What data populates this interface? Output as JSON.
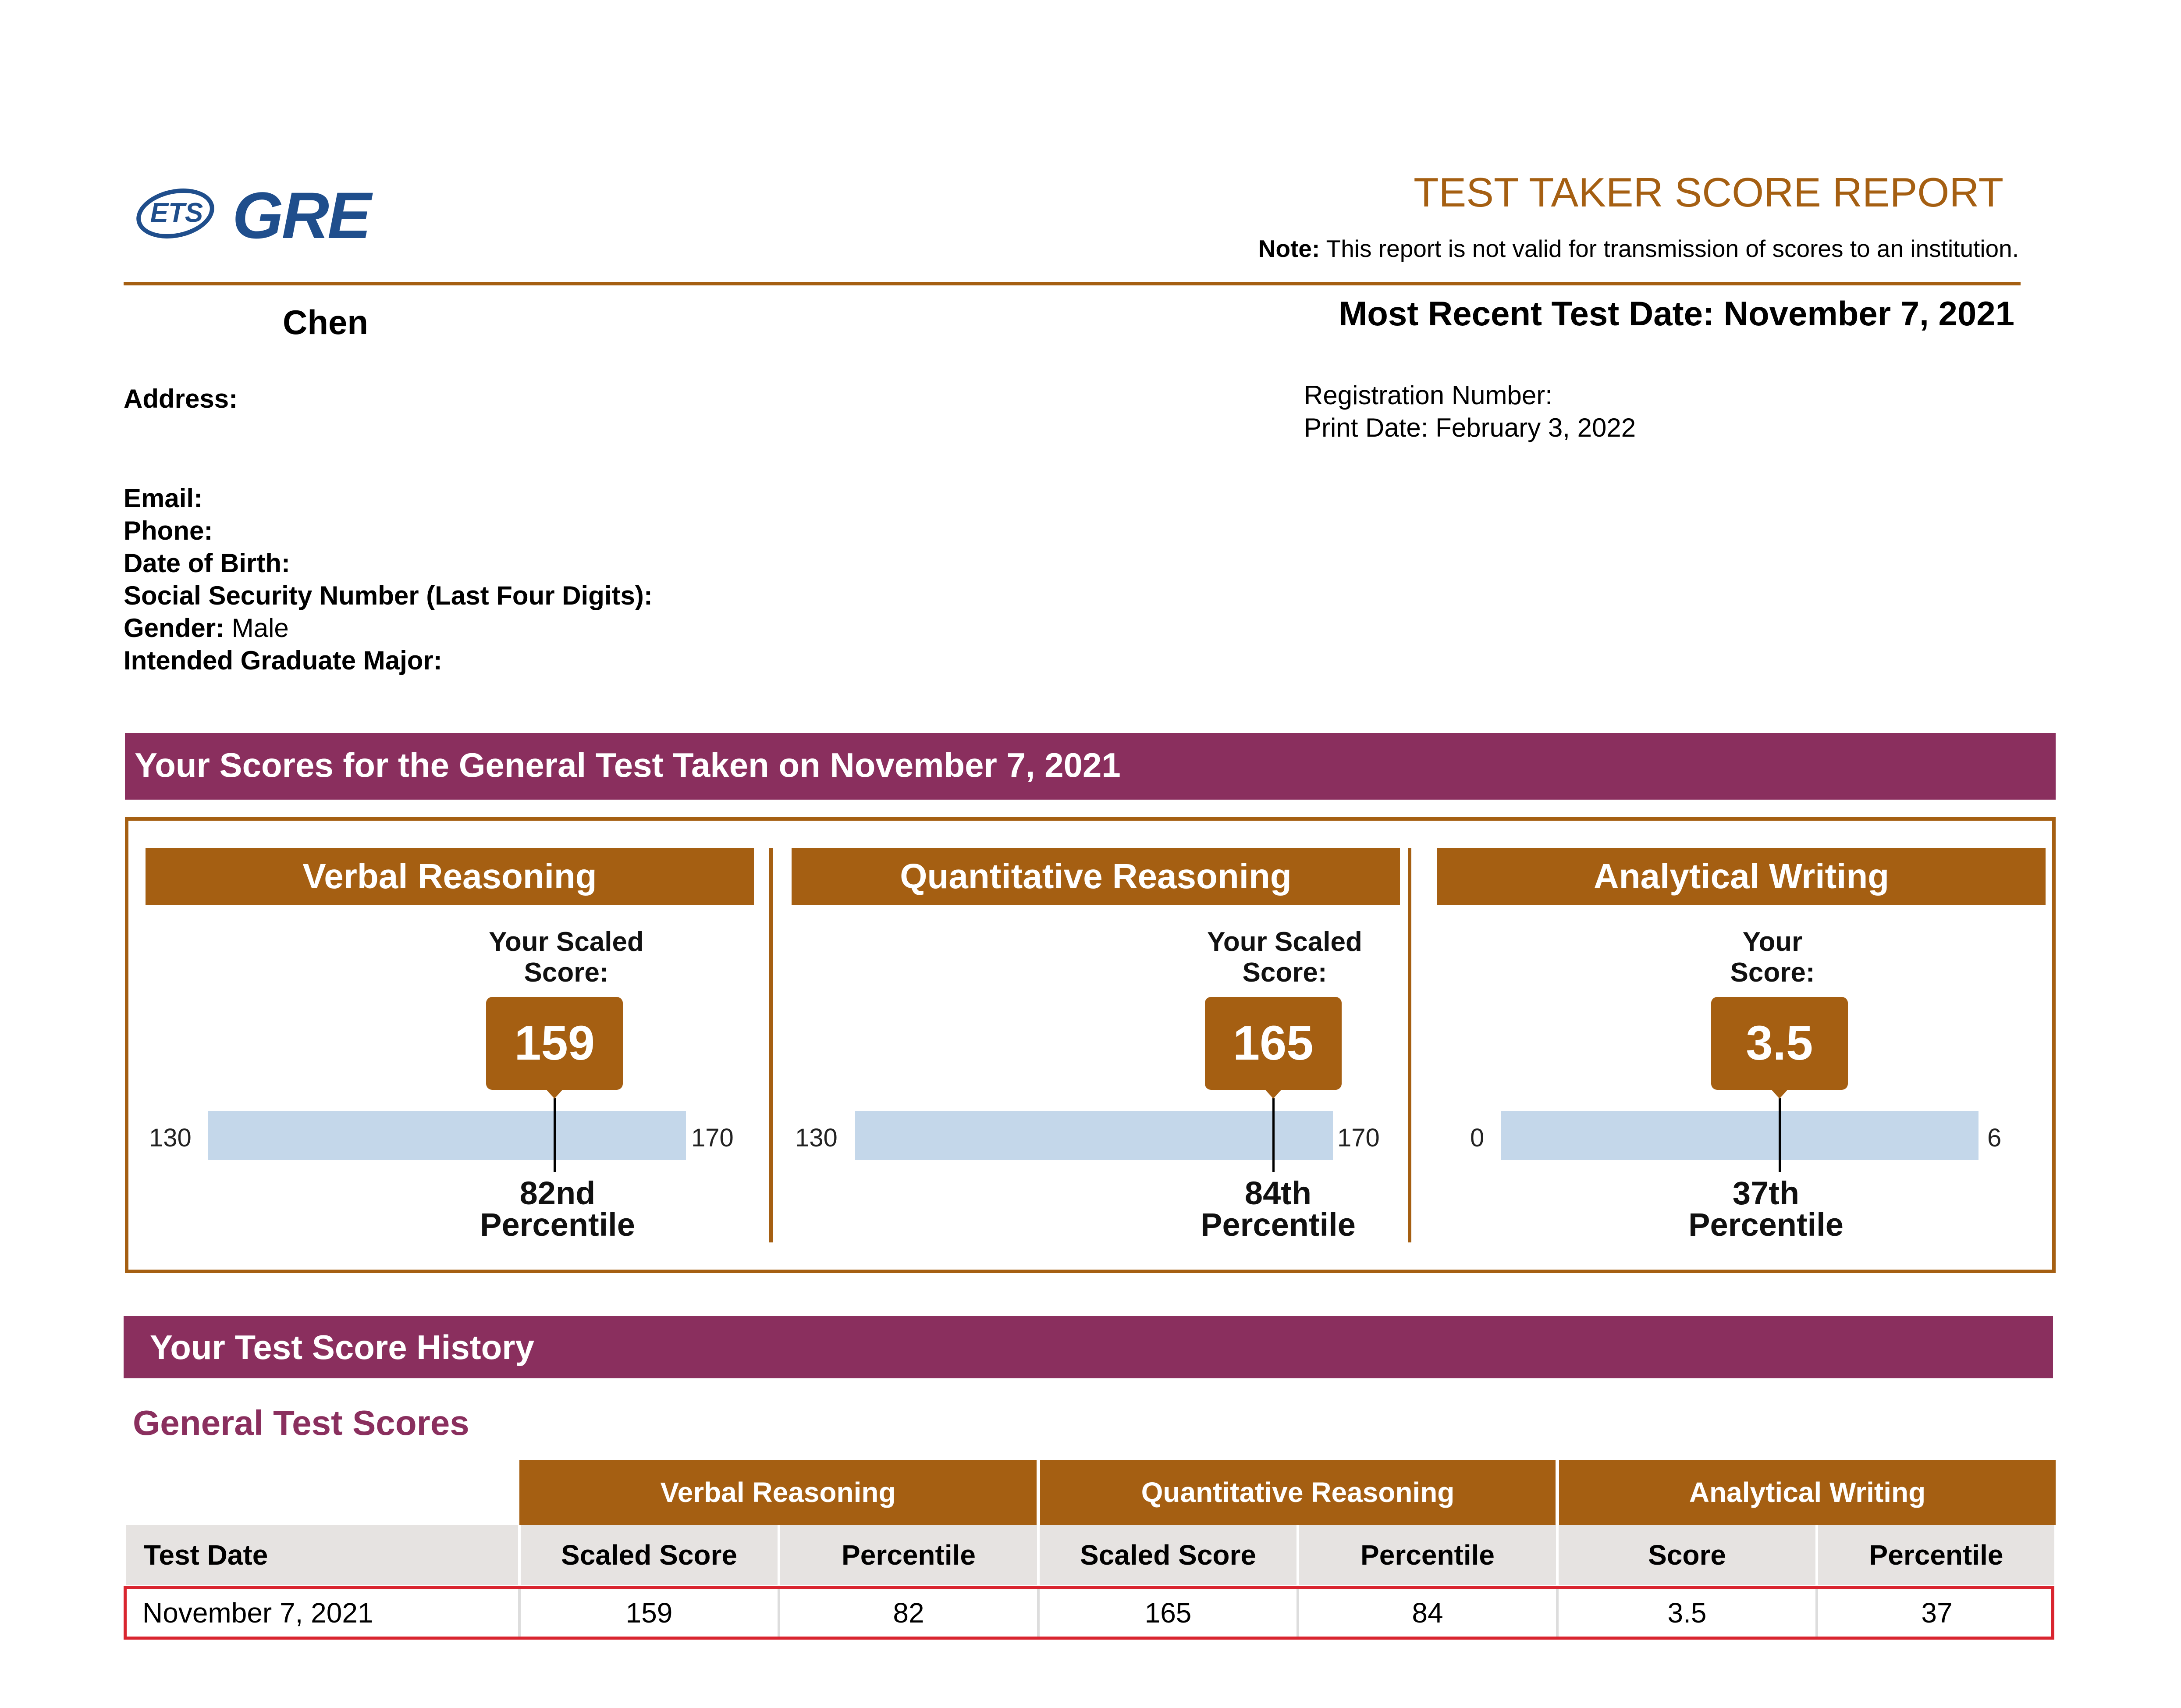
{
  "header": {
    "logo_ets": "ETS",
    "logo_gre": "GRE",
    "title": "TEST TAKER SCORE REPORT",
    "note_label": "Note:",
    "note_text": " This report is not valid for transmission of scores to an institution."
  },
  "candidate": {
    "name": "Chen",
    "most_recent_test_date": "Most Recent Test Date: November 7, 2021",
    "address_label": "Address:",
    "registration_number": "Registration Number:",
    "print_date": "Print Date: February 3, 2022",
    "email_label": "Email:",
    "phone_label": "Phone:",
    "dob_label": "Date of Birth:",
    "ssn_label": "Social Security Number (Last Four Digits):",
    "gender_label": "Gender:",
    "gender_value": " Male",
    "major_label": "Intended Graduate Major:"
  },
  "scores_section": {
    "heading": "Your Scores for the General Test Taken on November 7, 2021",
    "panels": [
      {
        "title": "Verbal Reasoning",
        "score_label_line1": "Your Scaled",
        "score_label_line2": "Score:",
        "score": "159",
        "score_value": 159,
        "min": "130",
        "max": "170",
        "min_value": 130,
        "max_value": 170,
        "percentile_line1": "82nd",
        "percentile_line2": "Percentile"
      },
      {
        "title": "Quantitative Reasoning",
        "score_label_line1": "Your Scaled",
        "score_label_line2": "Score:",
        "score": "165",
        "score_value": 165,
        "min": "130",
        "max": "170",
        "min_value": 130,
        "max_value": 170,
        "percentile_line1": "84th",
        "percentile_line2": "Percentile"
      },
      {
        "title": "Analytical Writing",
        "score_label_line1": "Your",
        "score_label_line2": "Score:",
        "score": "3.5",
        "score_value": 3.5,
        "min": "0",
        "max": "6",
        "min_value": 0,
        "max_value": 6,
        "percentile_line1": "37th",
        "percentile_line2": "Percentile"
      }
    ]
  },
  "history": {
    "heading": "Your Test Score History",
    "subheading": "General Test Scores",
    "groups": [
      "Verbal Reasoning",
      "Quantitative Reasoning",
      "Analytical Writing"
    ],
    "columns": [
      "Test Date",
      "Scaled Score",
      "Percentile",
      "Scaled Score",
      "Percentile",
      "Score",
      "Percentile"
    ],
    "rows": [
      [
        "November 7, 2021",
        "159",
        "82",
        "165",
        "84",
        "3.5",
        "37"
      ]
    ]
  },
  "colors": {
    "brown": "#a55f12",
    "maroon": "#8a2f5e",
    "bar_blue": "#c4d7ea",
    "logo_blue": "#1f4e8c",
    "highlight_red": "#d9252f"
  }
}
